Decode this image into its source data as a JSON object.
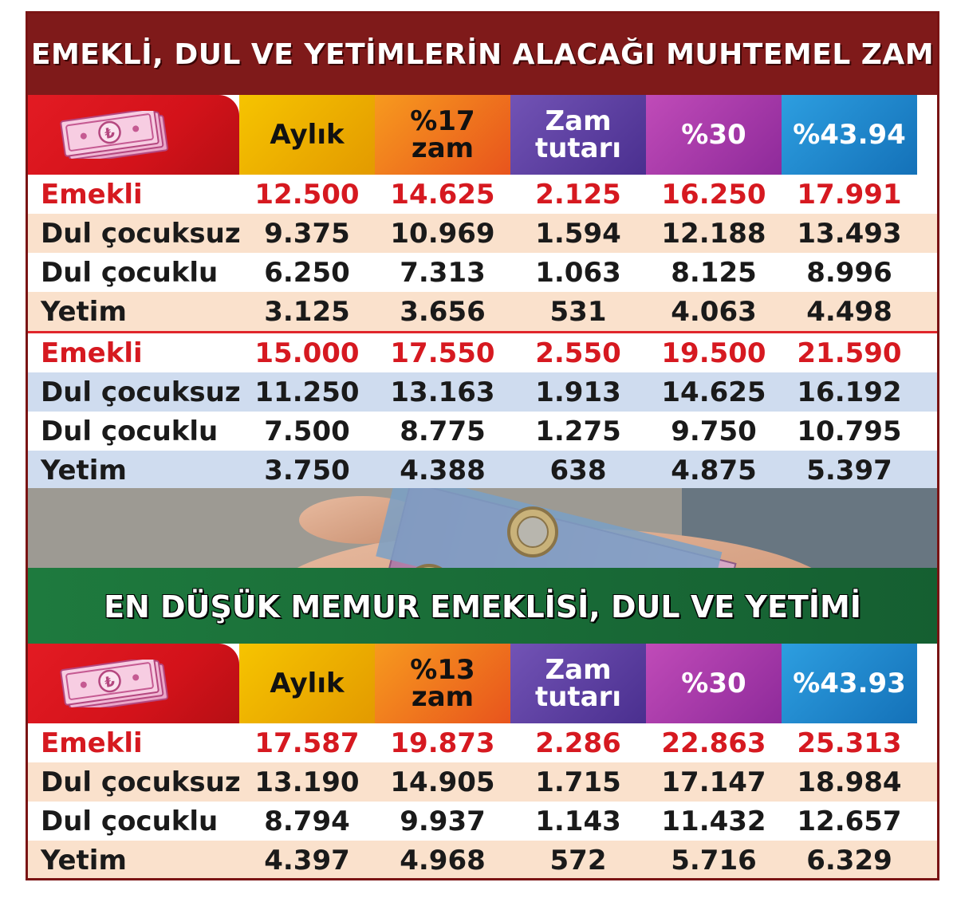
{
  "title1": "EMEKLİ, DUL VE YETİMLERİN ALACAĞI MUHTEMEL ZAM",
  "title2": "EN DÜŞÜK MEMUR EMEKLİSİ, DUL VE YETİMİ",
  "icon": "banknote-lira-icon",
  "colors": {
    "title_bg": "#7f1a1a",
    "highlight_red": "#d61920",
    "green_band": "#1e7a3e"
  },
  "table1": {
    "headers": [
      "Aylık",
      "%17 zam",
      "Zam tutarı",
      "%30",
      "%43.94"
    ],
    "header_lines": {
      "zam1": "Zam",
      "zam2": "tutarı"
    },
    "groups": [
      {
        "rows": [
          {
            "label": "Emekli",
            "values": [
              "12.500",
              "14.625",
              "2.125",
              "16.250",
              "17.991"
            ]
          },
          {
            "label": "Dul çocuksuz",
            "values": [
              "9.375",
              "10.969",
              "1.594",
              "12.188",
              "13.493"
            ]
          },
          {
            "label": "Dul çocuklu",
            "values": [
              "6.250",
              "7.313",
              "1.063",
              "8.125",
              "8.996"
            ]
          },
          {
            "label": "Yetim",
            "values": [
              "3.125",
              "3.656",
              "531",
              "4.063",
              "4.498"
            ]
          }
        ]
      },
      {
        "rows": [
          {
            "label": "Emekli",
            "values": [
              "15.000",
              "17.550",
              "2.550",
              "19.500",
              "21.590"
            ]
          },
          {
            "label": "Dul çocuksuz",
            "values": [
              "11.250",
              "13.163",
              "1.913",
              "14.625",
              "16.192"
            ]
          },
          {
            "label": "Dul çocuklu",
            "values": [
              "7.500",
              "8.775",
              "1.275",
              "9.750",
              "10.795"
            ]
          },
          {
            "label": "Yetim",
            "values": [
              "3.750",
              "4.388",
              "638",
              "4.875",
              "5.397"
            ]
          }
        ]
      }
    ]
  },
  "table2": {
    "headers": [
      "Aylık",
      "%13 zam",
      "Zam tutarı",
      "%30",
      "%43.93"
    ],
    "header_lines": {
      "zam1": "Zam",
      "zam2": "tutarı"
    },
    "rows": [
      {
        "label": "Emekli",
        "values": [
          "17.587",
          "19.873",
          "2.286",
          "22.863",
          "25.313"
        ]
      },
      {
        "label": "Dul çocuksuz",
        "values": [
          "13.190",
          "14.905",
          "1.715",
          "17.147",
          "18.984"
        ]
      },
      {
        "label": "Dul çocuklu",
        "values": [
          "8.794",
          "9.937",
          "1.143",
          "11.432",
          "12.657"
        ]
      },
      {
        "label": "Yetim",
        "values": [
          "4.397",
          "4.968",
          "572",
          "5.716",
          "6.329"
        ]
      }
    ]
  }
}
